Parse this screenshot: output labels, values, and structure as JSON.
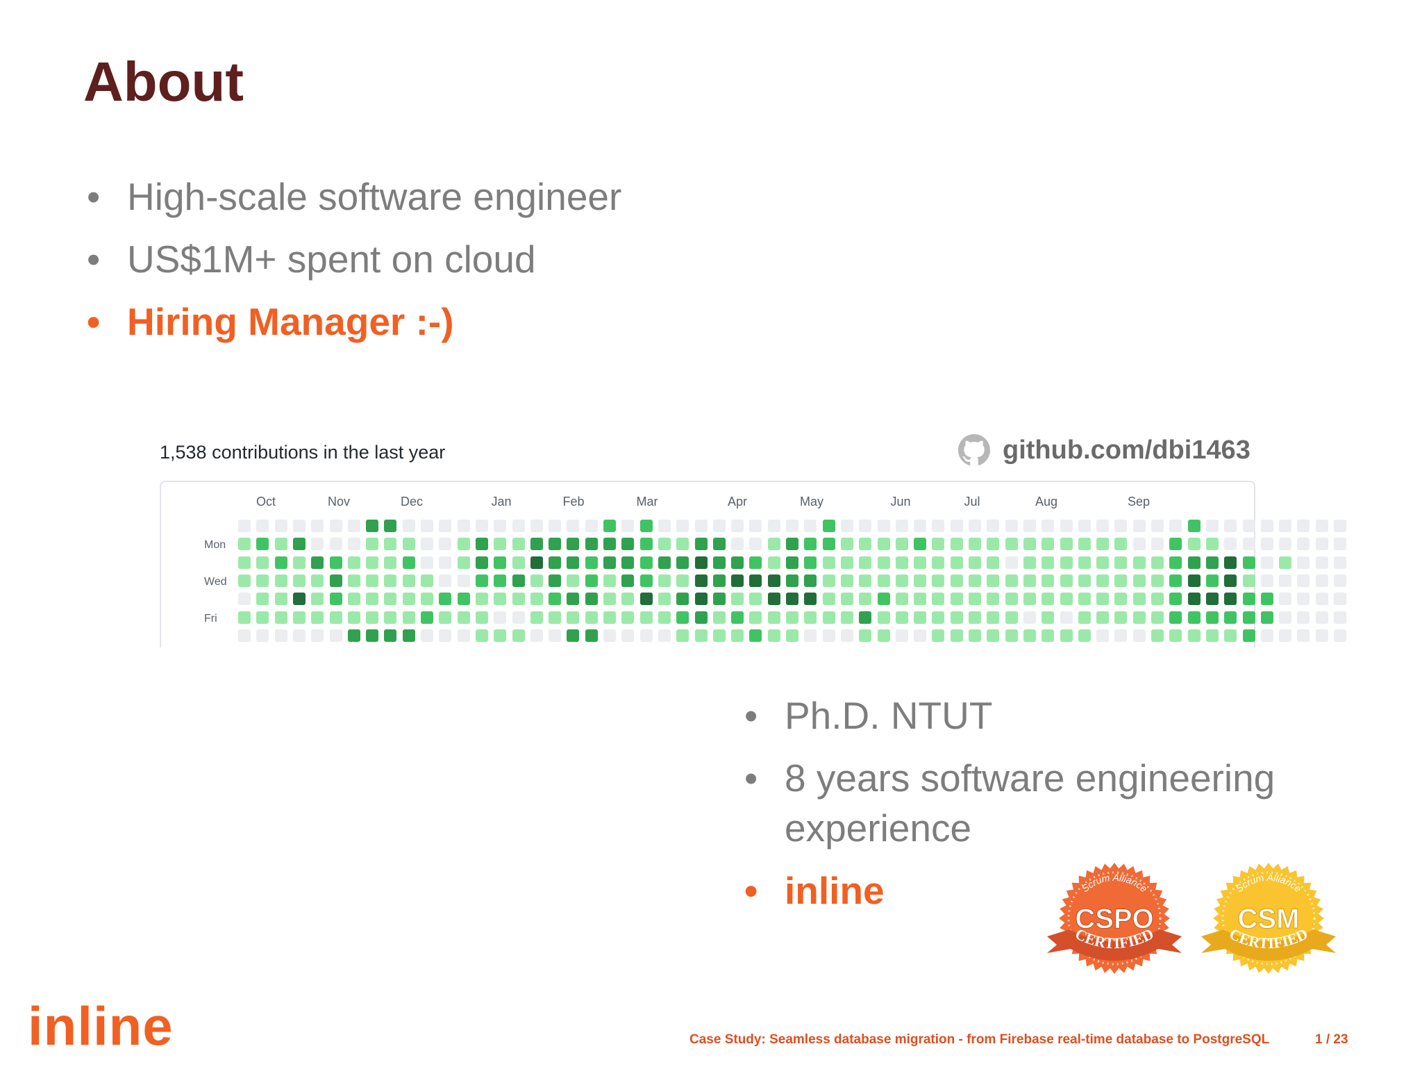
{
  "slide": {
    "title": "About",
    "bullets_top": [
      {
        "text": "High-scale software engineer",
        "accent": false
      },
      {
        "text": "US$1M+ spent on cloud",
        "accent": false
      },
      {
        "text": "Hiring Manager :-)",
        "accent": true
      }
    ],
    "bullets_bottom": [
      {
        "text": "Ph.D. NTUT",
        "accent": false
      },
      {
        "text": "8 years software engineering experience",
        "accent": false
      },
      {
        "text": "inline",
        "accent": true
      }
    ],
    "bullet_glyph": "•"
  },
  "contributions": {
    "title": "1,538 contributions in the last year",
    "github_link": "github.com/dbi1463",
    "github_icon": "github-icon",
    "months": [
      "Oct",
      "Nov",
      "Dec",
      "Jan",
      "Feb",
      "Mar",
      "Apr",
      "May",
      "Jun",
      "Jul",
      "Aug",
      "Sep"
    ],
    "days": [
      "Mon",
      "Wed",
      "Fri"
    ],
    "colors": [
      "#ebedf0",
      "#9be9a8",
      "#40c463",
      "#30a14e",
      "#216e39"
    ],
    "levels": [
      "0000000330000000000020200000000020000000000000000000200000000",
      "1213000111001311333333211330013221111211111111111002110000000",
      "1121321112001321433233233433213211111111110111111112334201000",
      "1111131111100223131213211434443311111111111111111112424100000",
      "0114121111122111123311413431144411121111111111111112444220000",
      "1111111111211100111111112312111111311111111010111112222220000",
      "0000003333000111003300001111211000110011111111100011111200000"
    ]
  },
  "badges": [
    {
      "top": "Scrum Alliance",
      "main": "CSPO",
      "bottom": "CERTIFIED",
      "color": "#f06a35",
      "dark": "#d4502a"
    },
    {
      "top": "Scrum Alliance",
      "main": "CSM",
      "bottom": "CERTIFIED",
      "color": "#f9c42f",
      "dark": "#e8a91c"
    }
  ],
  "footer": {
    "logo": "inline",
    "text": "Case Study: Seamless database migration - from Firebase real-time database to PostgreSQL",
    "page": "1  /  23"
  }
}
